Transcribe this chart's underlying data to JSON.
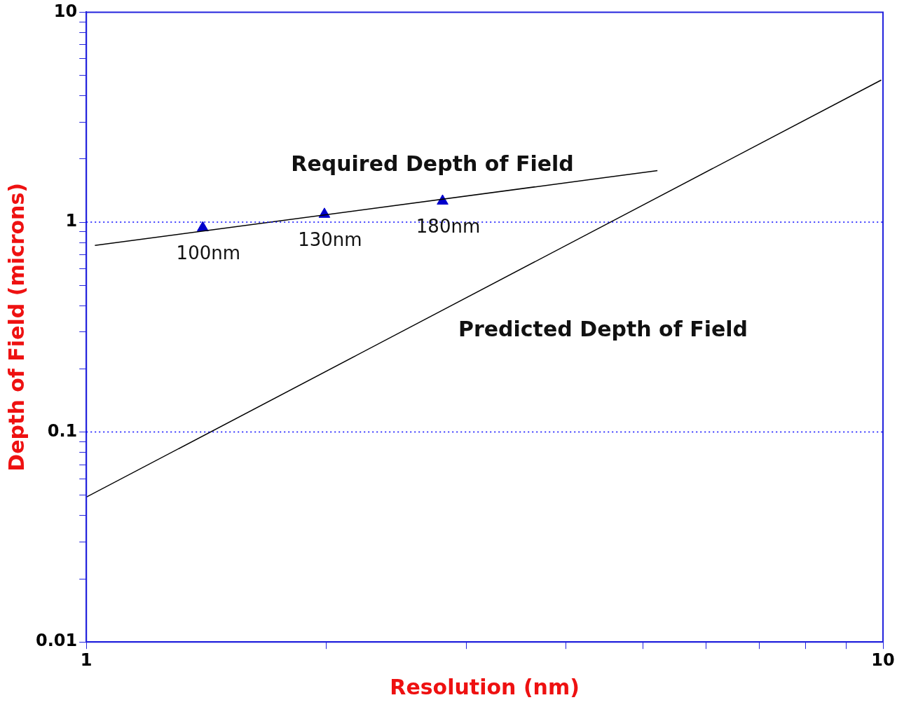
{
  "chart_data": {
    "type": "line",
    "xlabel": "Resolution (nm)",
    "ylabel": "Depth of Field (microns)",
    "log": "xy",
    "xlim": [
      1,
      10
    ],
    "ylim": [
      0.01,
      10
    ],
    "xticks": [
      1,
      {
        "value": 2,
        "label": null
      },
      {
        "value": 3,
        "label": null
      },
      {
        "value": 4,
        "label": null
      },
      {
        "value": 5,
        "label": null
      },
      {
        "value": 6,
        "label": null
      },
      {
        "value": 7,
        "label": null
      },
      {
        "value": 8,
        "label": null
      },
      {
        "value": 9,
        "label": null
      },
      10
    ],
    "yticks": [
      0.01,
      {
        "value": 0.02,
        "label": null
      },
      {
        "value": 0.03,
        "label": null
      },
      {
        "value": 0.04,
        "label": null
      },
      {
        "value": 0.05,
        "label": null
      },
      {
        "value": 0.06,
        "label": null
      },
      {
        "value": 0.07,
        "label": null
      },
      {
        "value": 0.08,
        "label": null
      },
      {
        "value": 0.09,
        "label": null
      },
      0.1,
      {
        "value": 0.2,
        "label": null
      },
      {
        "value": 0.3,
        "label": null
      },
      {
        "value": 0.4,
        "label": null
      },
      {
        "value": 0.5,
        "label": null
      },
      {
        "value": 0.6,
        "label": null
      },
      {
        "value": 0.7,
        "label": null
      },
      {
        "value": 0.8,
        "label": null
      },
      {
        "value": 0.9,
        "label": null
      },
      1,
      {
        "value": 2,
        "label": null
      },
      {
        "value": 3,
        "label": null
      },
      {
        "value": 4,
        "label": null
      },
      {
        "value": 5,
        "label": null
      },
      {
        "value": 6,
        "label": null
      },
      {
        "value": 7,
        "label": null
      },
      {
        "value": 8,
        "label": null
      },
      {
        "value": 9,
        "label": null
      },
      10
    ],
    "grid": false,
    "legend": false,
    "series": [
      {
        "name": "Required Depth of Field",
        "color": "#000000",
        "marker": "none",
        "x": [
          1.025,
          5.21
        ],
        "values": [
          0.774,
          1.76
        ]
      },
      {
        "type": "scatter",
        "color": "#0000cc",
        "marker": "triangle",
        "x": [
          1.4,
          1.99,
          2.8
        ],
        "values": [
          0.94,
          1.09,
          1.26
        ]
      },
      {
        "name": "Predicted Depth of Field",
        "color": "#000000",
        "marker": "none",
        "x": [
          1,
          9.95
        ],
        "values": [
          0.049,
          4.75
        ]
      }
    ],
    "ref_lines": [
      {
        "axis": "y",
        "value": 1,
        "color": "#0000ff",
        "line_style": "dotted"
      },
      {
        "axis": "y",
        "value": 0.1,
        "color": "#0000ff",
        "line_style": "dotted"
      }
    ],
    "annotations": [
      {
        "text": "100nm",
        "x": 1.4,
        "y": 0.94
      },
      {
        "text": "130nm",
        "x": 1.99,
        "y": 1.09
      },
      {
        "text": "180nm",
        "x": 2.8,
        "y": 1.26
      }
    ]
  }
}
